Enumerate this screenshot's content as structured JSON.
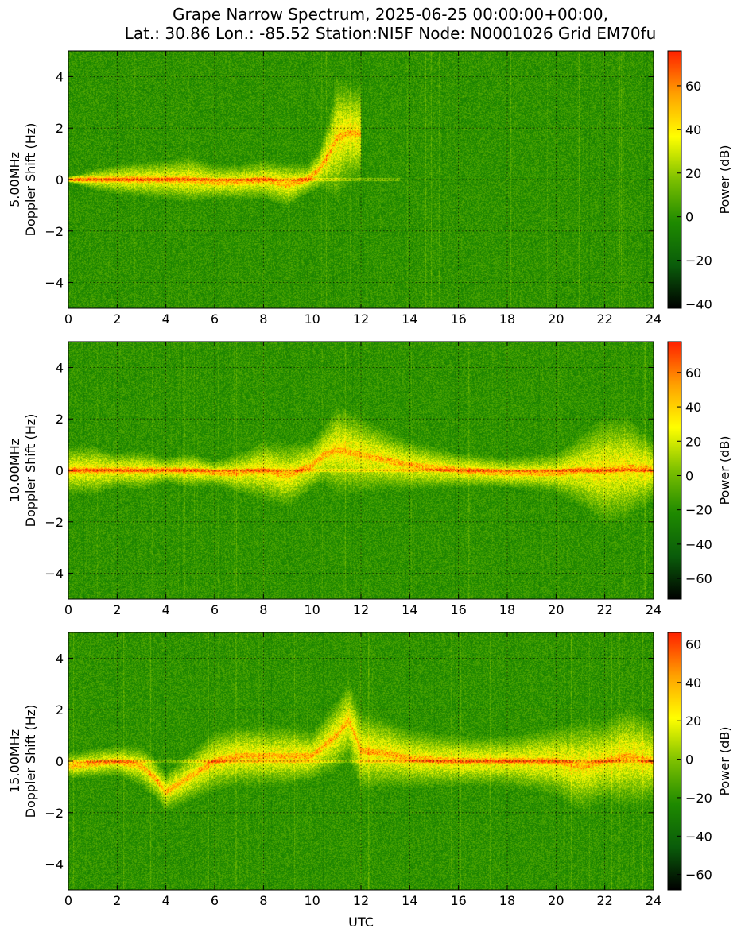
{
  "figure": {
    "title_line1": "Grape Narrow Spectrum, 2025-06-25 00:00:00+00:00,",
    "title_line2": "Lat.: 30.86 Lon.: -85.52 Station:NI5F Node: N0001026 Grid EM70fu",
    "xlabel": "UTC"
  },
  "colors": {
    "colormap": [
      "#000000",
      "#0a5c0a",
      "#1e8a00",
      "#7cc000",
      "#ffff00",
      "#ffa000",
      "#ff2000"
    ],
    "grid": "#000000"
  },
  "chart_data": [
    {
      "type": "heatmap",
      "band_label": "5.00MHz",
      "ylabel": "Doppler Shift (Hz)",
      "xlim": [
        0,
        24
      ],
      "ylim": [
        -5,
        5
      ],
      "xticks": [
        "0",
        "2",
        "4",
        "6",
        "8",
        "10",
        "12",
        "14",
        "16",
        "18",
        "20",
        "22",
        "24"
      ],
      "yticks": [
        "4",
        "2",
        "0",
        "−2",
        "−4"
      ],
      "grid": true,
      "colorbar": {
        "label": "Power (dB)",
        "range": [
          -42,
          76
        ],
        "ticks": [
          "60",
          "40",
          "20",
          "0",
          "−20",
          "−40"
        ],
        "tick_values": [
          60,
          40,
          20,
          0,
          -20,
          -40
        ]
      },
      "trace": {
        "x": [
          0,
          1,
          2,
          3,
          4,
          5,
          6,
          7,
          8,
          9,
          9.8,
          10.3,
          10.7,
          11.0,
          11.5
        ],
        "y": [
          0,
          0,
          0,
          0,
          0,
          0,
          -0.1,
          -0.1,
          0,
          -0.2,
          0,
          0.4,
          1.0,
          1.6,
          1.8
        ],
        "spread_hz": [
          0.1,
          0.4,
          0.6,
          0.7,
          0.8,
          0.9,
          0.7,
          0.7,
          0.8,
          0.9,
          0.6,
          0.8,
          1.5,
          2.5,
          2.0
        ],
        "end_x": 12.0
      },
      "carrier_line_x": [
        0,
        13.6
      ]
    },
    {
      "type": "heatmap",
      "band_label": "10.00MHz",
      "ylabel": "Doppler Shift (Hz)",
      "xlim": [
        0,
        24
      ],
      "ylim": [
        -5,
        5
      ],
      "xticks": [
        "0",
        "2",
        "4",
        "6",
        "8",
        "10",
        "12",
        "14",
        "16",
        "18",
        "20",
        "22",
        "24"
      ],
      "yticks": [
        "4",
        "2",
        "0",
        "−2",
        "−4"
      ],
      "grid": true,
      "colorbar": {
        "label": "Power (dB)",
        "range": [
          -72,
          78
        ],
        "ticks": [
          "60",
          "40",
          "20",
          "0",
          "−20",
          "−40",
          "−60"
        ],
        "tick_values": [
          60,
          40,
          20,
          0,
          -20,
          -40,
          -60
        ]
      },
      "trace": {
        "x": [
          0,
          1,
          2,
          3,
          4,
          5,
          6,
          7,
          8,
          9,
          10,
          10.5,
          11,
          12,
          13,
          14,
          16,
          18,
          20,
          21,
          22,
          23,
          24
        ],
        "y": [
          0,
          0,
          0,
          0,
          0,
          0,
          -0.1,
          -0.1,
          0,
          -0.2,
          0.2,
          0.6,
          0.8,
          0.6,
          0.4,
          0.2,
          0,
          -0.1,
          -0.1,
          0,
          0,
          0.1,
          0
        ],
        "spread_hz": [
          1.0,
          1.0,
          0.7,
          0.8,
          0.5,
          0.7,
          0.5,
          0.8,
          1.2,
          1.3,
          1.0,
          1.2,
          1.8,
          1.6,
          1.2,
          1.0,
          0.7,
          0.6,
          0.8,
          1.4,
          2.2,
          2.0,
          1.2
        ],
        "end_x": 24
      },
      "carrier_line_x": [
        0,
        24
      ]
    },
    {
      "type": "heatmap",
      "band_label": "15.00MHz",
      "ylabel": "Doppler Shift (Hz)",
      "xlim": [
        0,
        24
      ],
      "ylim": [
        -5,
        5
      ],
      "xticks": [
        "0",
        "2",
        "4",
        "6",
        "8",
        "10",
        "12",
        "14",
        "16",
        "18",
        "20",
        "22",
        "24"
      ],
      "yticks": [
        "4",
        "2",
        "0",
        "−2",
        "−4"
      ],
      "grid": true,
      "colorbar": {
        "label": "Power (dB)",
        "range": [
          -68,
          66
        ],
        "ticks": [
          "60",
          "40",
          "20",
          "0",
          "−20",
          "−40",
          "−60"
        ],
        "tick_values": [
          60,
          40,
          20,
          0,
          -20,
          -40,
          -60
        ]
      },
      "trace": {
        "x": [
          0,
          1,
          2,
          3,
          3.5,
          4,
          5,
          6,
          7,
          8,
          9,
          10,
          11,
          11.5,
          12,
          13,
          14,
          16,
          18,
          20,
          21,
          22,
          23,
          24
        ],
        "y": [
          -0.2,
          -0.1,
          0,
          -0.2,
          -0.6,
          -1.2,
          -0.6,
          0,
          0.2,
          0.2,
          0.2,
          0.2,
          1.0,
          1.6,
          0.4,
          0.3,
          0.1,
          0,
          0,
          0,
          -0.2,
          0,
          0.2,
          0
        ],
        "spread_hz": [
          0.5,
          0.6,
          0.6,
          0.8,
          0.8,
          0.8,
          1.0,
          1.2,
          1.2,
          1.2,
          1.2,
          1.0,
          1.4,
          1.6,
          1.6,
          1.4,
          1.2,
          1.0,
          1.0,
          1.4,
          1.8,
          1.6,
          2.0,
          1.6
        ],
        "end_x": 24
      },
      "carrier_line_x": [
        0,
        24
      ]
    }
  ]
}
